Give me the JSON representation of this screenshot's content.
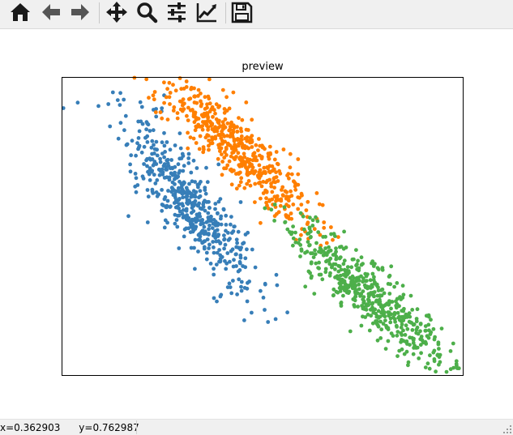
{
  "toolbar": {
    "buttons": [
      {
        "name": "home",
        "icon": "home-icon"
      },
      {
        "name": "back",
        "icon": "arrow-left-icon"
      },
      {
        "name": "forward",
        "icon": "arrow-right-icon"
      },
      {
        "name": "pan",
        "icon": "move-icon"
      },
      {
        "name": "zoom",
        "icon": "magnifier-icon"
      },
      {
        "name": "configure-subplots",
        "icon": "sliders-icon"
      },
      {
        "name": "edit-axes",
        "icon": "line-chart-icon"
      },
      {
        "name": "save",
        "icon": "floppy-disk-icon"
      }
    ]
  },
  "chart_data": {
    "type": "scatter",
    "title": "preview",
    "xlabel": "",
    "ylabel": "",
    "xlim": [
      0,
      1
    ],
    "ylim": [
      0,
      1
    ],
    "xticks": false,
    "yticks": false,
    "grid": false,
    "series": [
      {
        "color": "#377eb8",
        "n": 520,
        "center": [
          0.32,
          0.57
        ],
        "dir": [
          0.19,
          -0.37
        ],
        "spread": 0.038,
        "outliers": [
          [
            0.09,
            0.905
          ],
          [
            0.14,
            0.795
          ]
        ]
      },
      {
        "color": "#ff7f00",
        "n": 520,
        "center": [
          0.43,
          0.77
        ],
        "dir": [
          0.22,
          -0.31
        ],
        "spread": 0.036,
        "outliers": [
          [
            0.18,
            1.0
          ],
          [
            0.21,
            0.995
          ]
        ]
      },
      {
        "color": "#4daf4a",
        "n": 520,
        "center": [
          0.775,
          0.26
        ],
        "dir": [
          0.24,
          -0.3
        ],
        "spread": 0.036,
        "outliers": [
          [
            0.97,
            0.02
          ],
          [
            0.94,
            0.035
          ]
        ]
      }
    ]
  },
  "status": {
    "coords": "x=0.362903      y=0.762987"
  }
}
